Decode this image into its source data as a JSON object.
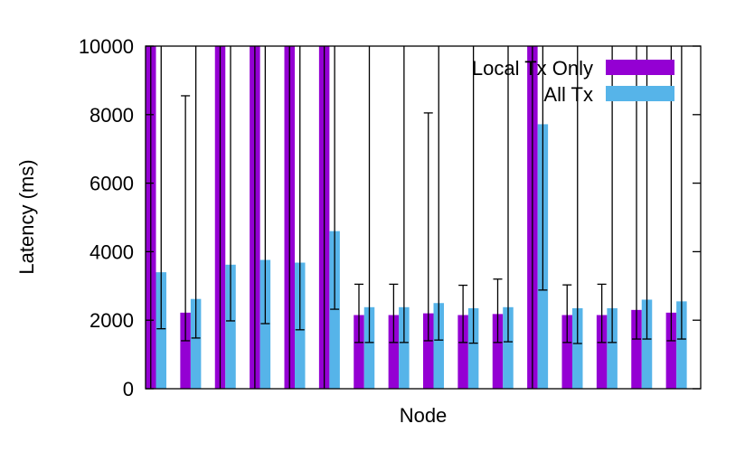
{
  "chart_data": {
    "type": "bar",
    "title": "",
    "xlabel": "Node",
    "ylabel": "Latency (ms)",
    "ylim": [
      0,
      10000
    ],
    "yticks": [
      0,
      2000,
      4000,
      6000,
      8000,
      10000
    ],
    "ytick_labels": [
      "0",
      "2000",
      "4000",
      "6000",
      "8000",
      "10000"
    ],
    "categories": [
      "",
      "",
      "",
      "",
      "",
      "",
      "",
      "",
      "",
      "",
      "",
      "",
      "",
      "",
      "",
      ""
    ],
    "legend_position": "top-right",
    "grid": false,
    "series": [
      {
        "name": "Local Tx Only",
        "color": "#9400D3",
        "values": [
          10000,
          2220,
          10000,
          10000,
          10000,
          10000,
          2150,
          2150,
          2200,
          2150,
          2180,
          10000,
          2150,
          2150,
          2300,
          2220
        ],
        "err_low": [
          null,
          1400,
          null,
          null,
          null,
          null,
          1350,
          1350,
          1400,
          1350,
          1350,
          null,
          1350,
          1350,
          1450,
          1400
        ],
        "err_high": [
          10000,
          8550,
          10000,
          10000,
          10000,
          10000,
          3050,
          3050,
          8050,
          3020,
          3200,
          10000,
          3030,
          3050,
          10000,
          10000
        ]
      },
      {
        "name": "All Tx",
        "color": "#56B4E9",
        "values": [
          3400,
          2620,
          3620,
          3760,
          3680,
          4600,
          2380,
          2380,
          2500,
          2350,
          2380,
          7720,
          2350,
          2350,
          2600,
          2550
        ],
        "err_low": [
          1750,
          1480,
          1980,
          1900,
          1720,
          2320,
          1350,
          1350,
          1420,
          1330,
          1370,
          2880,
          1320,
          1350,
          1450,
          1450
        ],
        "err_high": [
          10000,
          10000,
          10000,
          10000,
          10000,
          10000,
          10000,
          10000,
          10000,
          10000,
          10000,
          10000,
          10000,
          10000,
          10000,
          10000
        ]
      }
    ]
  }
}
